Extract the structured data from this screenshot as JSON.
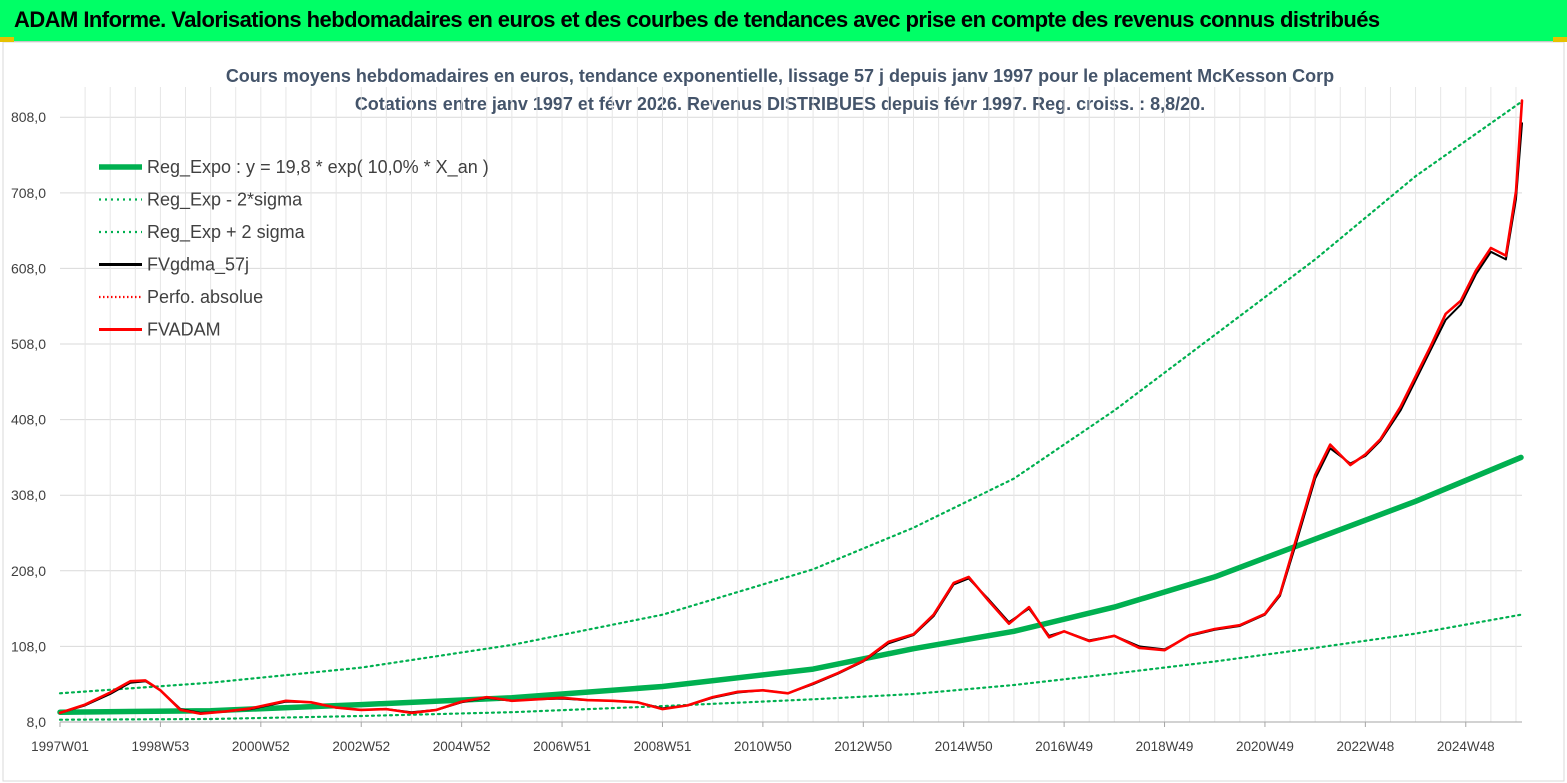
{
  "header": {
    "title": "ADAM Informe. Valorisations hebdomadaires en euros et des courbes de tendances avec prise en compte des revenus connus distribués"
  },
  "colors": {
    "banner": "#00ff66",
    "reg_expo": "#00b050",
    "sigma": "#00b050",
    "fv57": "#000000",
    "perfo": "#ff0000",
    "fvadam": "#ff0000",
    "title": "#44546a"
  },
  "chart_data": {
    "type": "line",
    "title": "Cours moyens hebdomadaires en euros, tendance exponentielle, lissage 57 j depuis janv 1997 pour le placement McKesson Corp",
    "subtitle": "Cotations entre janv 1997 et févr 2026. Revenus DISTRIBUES depuis févr 1997. Reg. croiss. : 8,8/20.",
    "xlabel": "",
    "ylabel": "",
    "x_range": [
      1997.0,
      2026.12
    ],
    "ylim": [
      8.0,
      848.0
    ],
    "y_ticks": [
      "8,0",
      "108,0",
      "208,0",
      "308,0",
      "408,0",
      "508,0",
      "608,0",
      "708,0",
      "808,0"
    ],
    "y_tick_values": [
      8,
      108,
      208,
      308,
      408,
      508,
      608,
      708,
      808
    ],
    "x_ticks": [
      "1997W01",
      "1998W53",
      "2000W52",
      "2002W52",
      "2004W52",
      "2006W51",
      "2008W51",
      "2010W50",
      "2012W50",
      "2014W50",
      "2016W49",
      "2018W49",
      "2020W49",
      "2022W48",
      "2024W48"
    ],
    "x_tick_values": [
      1997.0,
      1999.0,
      2001.0,
      2003.0,
      2005.0,
      2007.0,
      2009.0,
      2011.0,
      2013.0,
      2015.0,
      2017.0,
      2019.0,
      2021.0,
      2023.0,
      2025.0
    ],
    "grid": true,
    "legend_position": "top-left",
    "series": [
      {
        "name": "Reg_Expo : y = 19,8 * exp( 10,0% *  X_an )",
        "style": "solid-thick",
        "x": [
          1997.0,
          2000.0,
          2003.0,
          2006.0,
          2009.0,
          2012.0,
          2014.0,
          2016.0,
          2018.0,
          2020.0,
          2022.0,
          2024.0,
          2026.1
        ],
        "y": [
          21,
          23,
          31,
          40,
          55,
          78,
          105,
          128,
          160,
          200,
          250,
          300,
          358
        ]
      },
      {
        "name": "Reg_Exp - 2*sigma",
        "style": "dotted",
        "x": [
          1997.0,
          2000.0,
          2003.0,
          2006.0,
          2009.0,
          2012.0,
          2014.0,
          2016.0,
          2018.0,
          2020.0,
          2022.0,
          2024.0,
          2026.1
        ],
        "y": [
          11,
          12,
          16,
          21,
          29,
          38,
          45,
          57,
          72,
          88,
          106,
          125,
          150
        ]
      },
      {
        "name": "Reg_Exp + 2 sigma",
        "style": "dotted",
        "x": [
          1997.0,
          2000.0,
          2003.0,
          2006.0,
          2009.0,
          2012.0,
          2014.0,
          2016.0,
          2018.0,
          2020.0,
          2022.0,
          2024.0,
          2026.1
        ],
        "y": [
          46,
          60,
          80,
          110,
          150,
          210,
          265,
          330,
          420,
          520,
          620,
          730,
          828
        ]
      },
      {
        "name": "FVgdma_57j",
        "style": "solid",
        "x": [
          1997.0,
          1997.5,
          1998.0,
          1998.4,
          1998.7,
          1999.0,
          1999.4,
          1999.8,
          2000.3,
          2000.8,
          2001.5,
          2002.0,
          2002.5,
          2003.0,
          2003.5,
          2004.0,
          2004.5,
          2005.0,
          2005.5,
          2006.0,
          2006.5,
          2007.0,
          2007.5,
          2008.0,
          2008.5,
          2009.0,
          2009.5,
          2010.0,
          2010.5,
          2011.0,
          2011.5,
          2012.0,
          2012.5,
          2013.0,
          2013.5,
          2014.0,
          2014.4,
          2014.8,
          2015.1,
          2015.5,
          2015.9,
          2016.3,
          2016.7,
          2017.0,
          2017.5,
          2018.0,
          2018.5,
          2019.0,
          2019.5,
          2020.0,
          2020.5,
          2021.0,
          2021.3,
          2021.6,
          2022.0,
          2022.3,
          2022.7,
          2023.0,
          2023.3,
          2023.7,
          2024.0,
          2024.3,
          2024.6,
          2024.9,
          2025.2,
          2025.5,
          2025.8,
          2026.0,
          2026.12
        ],
        "y": [
          20,
          30,
          45,
          60,
          62,
          50,
          25,
          20,
          22,
          25,
          35,
          34,
          27,
          24,
          25,
          21,
          24,
          34,
          40,
          36,
          38,
          39,
          37,
          36,
          34,
          26,
          30,
          40,
          47,
          50,
          46,
          58,
          72,
          88,
          112,
          123,
          148,
          190,
          198,
          170,
          140,
          158,
          122,
          128,
          116,
          122,
          108,
          104,
          122,
          130,
          135,
          150,
          175,
          240,
          330,
          370,
          350,
          360,
          380,
          420,
          460,
          500,
          540,
          560,
          600,
          630,
          620,
          700,
          800
        ]
      },
      {
        "name": "Perfo. absolue",
        "style": "dotted",
        "x": [
          1997.0,
          1997.5,
          1998.0,
          1998.4,
          1998.7,
          1999.0,
          1999.4,
          1999.8,
          2000.3,
          2000.8,
          2001.5,
          2002.0,
          2002.5,
          2003.0,
          2003.5,
          2004.0,
          2004.5,
          2005.0,
          2005.5,
          2006.0,
          2006.5,
          2007.0,
          2007.5,
          2008.0,
          2008.5,
          2009.0,
          2009.5,
          2010.0,
          2010.5,
          2011.0,
          2011.5,
          2012.0,
          2012.5,
          2013.0,
          2013.5,
          2014.0,
          2014.4,
          2014.8,
          2015.1,
          2015.5,
          2015.9,
          2016.3,
          2016.7,
          2017.0,
          2017.5,
          2018.0,
          2018.5,
          2019.0,
          2019.5,
          2020.0,
          2020.5,
          2021.0,
          2021.3,
          2021.6,
          2022.0,
          2022.3,
          2022.7,
          2023.0,
          2023.3,
          2023.7,
          2024.0,
          2024.3,
          2024.6,
          2024.9,
          2025.2,
          2025.5,
          2025.8,
          2026.0,
          2026.12
        ],
        "y": [
          20,
          31,
          47,
          62,
          63,
          50,
          24,
          19,
          22,
          26,
          36,
          34,
          27,
          24,
          25,
          20,
          24,
          35,
          41,
          36,
          38,
          40,
          37,
          36,
          34,
          25,
          30,
          41,
          48,
          50,
          46,
          59,
          73,
          89,
          114,
          124,
          150,
          192,
          200,
          168,
          138,
          160,
          120,
          128,
          115,
          122,
          106,
          103,
          123,
          131,
          136,
          151,
          177,
          245,
          335,
          375,
          348,
          362,
          382,
          425,
          465,
          505,
          548,
          565,
          605,
          635,
          625,
          710,
          830
        ]
      },
      {
        "name": "FVADAM",
        "style": "solid",
        "x": [
          1997.0,
          1997.5,
          1998.0,
          1998.4,
          1998.7,
          1999.0,
          1999.4,
          1999.8,
          2000.3,
          2000.8,
          2001.5,
          2002.0,
          2002.5,
          2003.0,
          2003.5,
          2004.0,
          2004.5,
          2005.0,
          2005.5,
          2006.0,
          2006.5,
          2007.0,
          2007.5,
          2008.0,
          2008.5,
          2009.0,
          2009.5,
          2010.0,
          2010.5,
          2011.0,
          2011.5,
          2012.0,
          2012.5,
          2013.0,
          2013.5,
          2014.0,
          2014.4,
          2014.8,
          2015.1,
          2015.5,
          2015.9,
          2016.3,
          2016.7,
          2017.0,
          2017.5,
          2018.0,
          2018.5,
          2019.0,
          2019.5,
          2020.0,
          2020.5,
          2021.0,
          2021.3,
          2021.6,
          2022.0,
          2022.3,
          2022.7,
          2023.0,
          2023.3,
          2023.7,
          2024.0,
          2024.3,
          2024.6,
          2024.9,
          2025.2,
          2025.5,
          2025.8,
          2026.0,
          2026.12
        ],
        "y": [
          20,
          31,
          47,
          62,
          63,
          50,
          24,
          19,
          22,
          26,
          36,
          34,
          27,
          24,
          25,
          20,
          24,
          35,
          41,
          36,
          38,
          40,
          37,
          36,
          34,
          25,
          30,
          41,
          48,
          50,
          46,
          59,
          73,
          89,
          114,
          124,
          150,
          192,
          200,
          168,
          138,
          160,
          120,
          128,
          115,
          122,
          106,
          103,
          123,
          131,
          136,
          151,
          177,
          245,
          335,
          375,
          348,
          362,
          382,
          425,
          465,
          505,
          548,
          565,
          605,
          635,
          625,
          710,
          830
        ]
      }
    ]
  }
}
